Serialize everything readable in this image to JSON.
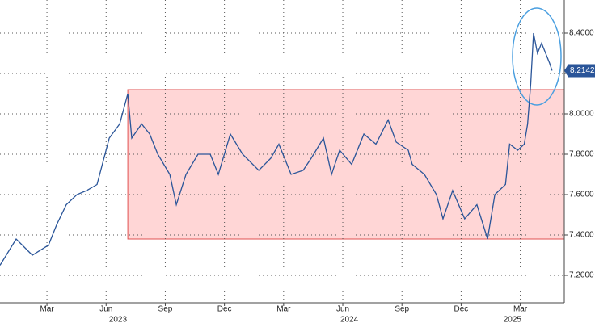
{
  "chart_data": {
    "type": "line",
    "x": [
      -0.38,
      0.44,
      1.26,
      2.08,
      2.49,
      2.98,
      3.52,
      4.01,
      4.54,
      5.16,
      5.69,
      6.1,
      6.3,
      6.8,
      7.21,
      7.62,
      8.23,
      8.56,
      9.05,
      9.66,
      10.28,
      10.69,
      11.3,
      11.92,
      12.74,
      13.35,
      13.76,
      14.38,
      14.99,
      15.4,
      16.02,
      16.43,
      16.84,
      17.45,
      18.07,
      18.68,
      19.3,
      19.71,
      20.32,
      20.52,
      21.14,
      21.75,
      22.08,
      22.57,
      23.18,
      23.8,
      24.34,
      24.71,
      25.25,
      25.46,
      25.87,
      26.2,
      26.37,
      26.53,
      26.67,
      26.87,
      27.08,
      27.49,
      27.61
    ],
    "series": [
      {
        "color": "#2a5599",
        "values": [
          7.25,
          7.38,
          7.3,
          7.35,
          7.45,
          7.55,
          7.6,
          7.62,
          7.65,
          7.88,
          7.95,
          8.1,
          7.88,
          7.95,
          7.9,
          7.8,
          7.7,
          7.55,
          7.7,
          7.8,
          7.8,
          7.7,
          7.9,
          7.8,
          7.72,
          7.78,
          7.85,
          7.7,
          7.72,
          7.78,
          7.88,
          7.7,
          7.82,
          7.75,
          7.9,
          7.85,
          7.97,
          7.86,
          7.82,
          7.75,
          7.7,
          7.6,
          7.48,
          7.62,
          7.48,
          7.55,
          7.38,
          7.6,
          7.65,
          7.85,
          7.82,
          7.85,
          7.95,
          8.15,
          8.4,
          8.3,
          8.35,
          8.25,
          8.2142
        ]
      }
    ],
    "xlim": [
      -0.38,
      28.23
    ],
    "ylim": [
      7.064,
      8.564
    ],
    "xticks": [
      {
        "value": 2,
        "label": "Mar"
      },
      {
        "value": 5,
        "label": "Jun"
      },
      {
        "value": 8,
        "label": "Sep"
      },
      {
        "value": 11,
        "label": "Dec"
      },
      {
        "value": 14,
        "label": "Mar"
      },
      {
        "value": 17,
        "label": "Jun"
      },
      {
        "value": 20,
        "label": "Sep"
      },
      {
        "value": 23,
        "label": "Dec"
      },
      {
        "value": 26,
        "label": "Mar"
      }
    ],
    "year_labels": [
      {
        "value": 5.6,
        "label": "2023"
      },
      {
        "value": 17.33,
        "label": "2024"
      },
      {
        "value": 25.6,
        "label": "2025"
      }
    ],
    "yticks": [
      {
        "value": 8.4,
        "label": "8.4000"
      },
      {
        "value": 8.2,
        "label": "8.2000"
      },
      {
        "value": 8.0,
        "label": "8.0000"
      },
      {
        "value": 7.8,
        "label": "7.8000"
      },
      {
        "value": 7.6,
        "label": "7.6000"
      },
      {
        "value": 7.4,
        "label": "7.4000"
      },
      {
        "value": 7.2,
        "label": "7.2000"
      }
    ],
    "highlight_range": {
      "xlim": [
        6.1,
        28.23
      ],
      "ylim": [
        7.38,
        8.12
      ],
      "color": "#ffd6d6",
      "edge_color": "#e05050"
    },
    "grid": true
  }
}
